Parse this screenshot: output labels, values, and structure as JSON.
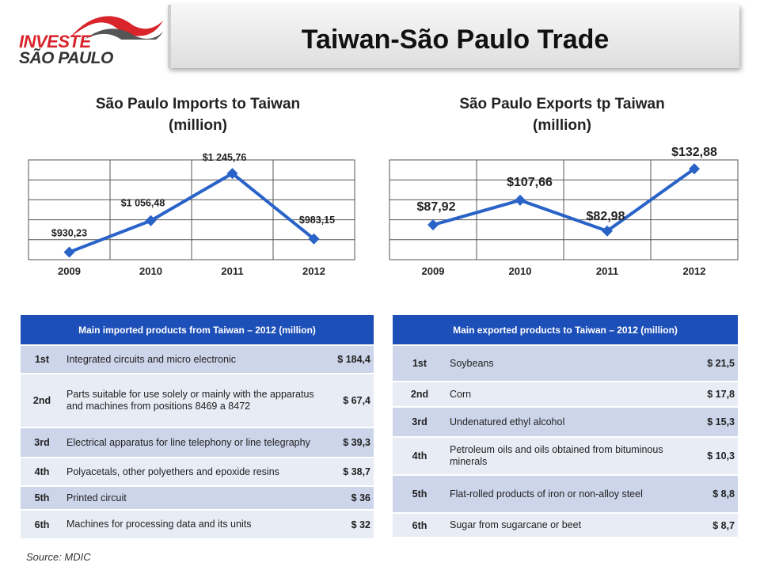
{
  "logo": {
    "line1": "INVESTE",
    "line2": "SÃO PAULO"
  },
  "title": "Taiwan-São Paulo Trade",
  "chart_data": [
    {
      "type": "line",
      "title": "São Paulo Imports to Taiwan (million)",
      "title_line1": "São Paulo Imports to Taiwan",
      "title_line2": "(million)",
      "categories": [
        "2009",
        "2010",
        "2011",
        "2012"
      ],
      "values": [
        930.23,
        1056.48,
        1245.76,
        983.15
      ],
      "data_labels": [
        "$930,23",
        "$1 056,48",
        "$1 245,76",
        "$983,15"
      ],
      "ylim": [
        900,
        1300
      ],
      "grid": true,
      "color": "#2a63c8"
    },
    {
      "type": "line",
      "title": "São Paulo Exports tp Taiwan (million)",
      "title_line1": "São Paulo Exports tp Taiwan",
      "title_line2": "(million)",
      "categories": [
        "2009",
        "2010",
        "2011",
        "2012"
      ],
      "values": [
        87.92,
        107.66,
        82.98,
        132.88
      ],
      "data_labels": [
        "$87,92",
        "$107,66",
        "$82,98",
        "$132,88"
      ],
      "ylim": [
        60,
        140
      ],
      "grid": true,
      "color": "#2a63c8"
    }
  ],
  "imports_table": {
    "header": "Main imported products from Taiwan – 2012 (million)",
    "rows": [
      {
        "rank": "1st",
        "product": "Integrated circuits and micro electronic",
        "value": "$ 184,4"
      },
      {
        "rank": "2nd",
        "product": "Parts suitable for use solely or mainly with the apparatus and machines from positions 8469 a 8472",
        "value": "$ 67,4"
      },
      {
        "rank": "3rd",
        "product": "Electrical apparatus for line telephony or line telegraphy",
        "value": "$ 39,3"
      },
      {
        "rank": "4th",
        "product": "Polyacetals, other polyethers and epoxide resins",
        "value": "$ 38,7"
      },
      {
        "rank": "5th",
        "product": "Printed circuit",
        "value": "$ 36"
      },
      {
        "rank": "6th",
        "product": "Machines for processing data and its units",
        "value": "$ 32"
      }
    ]
  },
  "exports_table": {
    "header": "Main exported products to Taiwan – 2012 (million)",
    "rows": [
      {
        "rank": "1st",
        "product": "Soybeans",
        "value": "$ 21,5"
      },
      {
        "rank": "2nd",
        "product": "Corn",
        "value": "$ 17,8"
      },
      {
        "rank": "3rd",
        "product": "Undenatured ethyl alcohol",
        "value": "$ 15,3"
      },
      {
        "rank": "4th",
        "product": "Petroleum oils and oils obtained from bituminous minerals",
        "value": "$ 10,3"
      },
      {
        "rank": "5th",
        "product": "Flat-rolled products of iron or non-alloy steel",
        "value": "$ 8,8"
      },
      {
        "rank": "6th",
        "product": "Sugar from sugarcane or beet",
        "value": "$ 8,7"
      }
    ]
  },
  "source": "Source: MDIC"
}
